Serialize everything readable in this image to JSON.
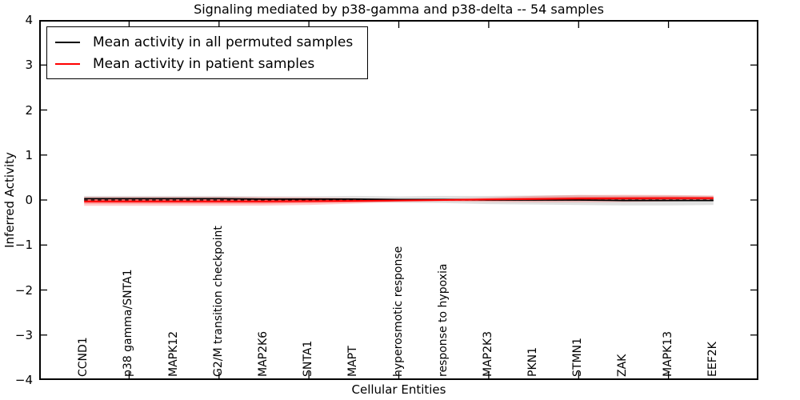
{
  "title": "Signaling mediated by p38-gamma and p38-delta -- 54 samples",
  "axes": {
    "xlabel": "Cellular Entities",
    "ylabel": "Inferred Activity"
  },
  "legend": {
    "items": [
      {
        "label": "Mean activity in all permuted samples",
        "color": "#000000"
      },
      {
        "label": "Mean activity in patient samples",
        "color": "#ff0000"
      }
    ]
  },
  "colors": {
    "frame": "#000000",
    "permuted_line": "#000000",
    "patient_line": "#ff0000",
    "patient_band": "#ff0000",
    "permuted_band": "#000000",
    "background": "#ffffff"
  },
  "chart_data": {
    "type": "line",
    "title": "Signaling mediated by p38-gamma and p38-delta -- 54 samples",
    "xlabel": "Cellular Entities",
    "ylabel": "Inferred Activity",
    "xlim": [
      0,
      16
    ],
    "ylim": [
      -4,
      4
    ],
    "grid": false,
    "legend_position": "upper left",
    "yticks": [
      4,
      3,
      2,
      1,
      0,
      -1,
      -2,
      -3,
      -4
    ],
    "ytick_labels": [
      "4",
      "3",
      "2",
      "1",
      "0",
      "−1",
      "−2",
      "−3",
      "−4"
    ],
    "frame_tick_x": [
      2,
      4,
      6,
      8,
      10,
      12,
      14
    ],
    "frame_tick_y": [
      -3,
      -2,
      -1,
      0,
      1,
      2,
      3
    ],
    "categories": [
      "CCND1",
      "p38 gamma/SNTA1",
      "MAPK12",
      "G2/M transition checkpoint",
      "MAP2K6",
      "SNTA1",
      "MAPT",
      "hyperosmotic response",
      "response to hypoxia",
      "MAP2K3",
      "PKN1",
      "STMN1",
      "ZAK",
      "MAPK13",
      "EEF2K"
    ],
    "x": [
      1,
      2,
      3,
      4,
      5,
      6,
      7,
      8,
      9,
      10,
      11,
      12,
      13,
      14,
      15
    ],
    "series": [
      {
        "name": "Mean activity in all permuted samples",
        "color": "#000000",
        "style": "solid",
        "values": [
          0.03,
          0.03,
          0.03,
          0.03,
          0.02,
          0.02,
          0.02,
          0.01,
          0.01,
          0.0,
          0.0,
          0.0,
          -0.01,
          -0.01,
          -0.01
        ],
        "band_std": [
          0.06,
          0.06,
          0.06,
          0.06,
          0.06,
          0.06,
          0.07,
          0.07,
          0.08,
          0.09,
          0.1,
          0.11,
          0.11,
          0.11,
          0.1
        ]
      },
      {
        "name": "Mean activity in patient samples",
        "color": "#ff0000",
        "style": "solid",
        "values": [
          -0.03,
          -0.03,
          -0.03,
          -0.03,
          -0.03,
          -0.025,
          -0.02,
          -0.01,
          0.0,
          0.01,
          0.02,
          0.03,
          0.035,
          0.04,
          0.04
        ],
        "band_std": [
          0.1,
          0.1,
          0.1,
          0.1,
          0.095,
          0.085,
          0.06,
          0.035,
          0.03,
          0.05,
          0.07,
          0.08,
          0.08,
          0.07,
          0.06
        ],
        "band_std_inner": [
          0.05,
          0.05,
          0.05,
          0.05,
          0.05,
          0.04,
          0.03,
          0.015,
          0.015,
          0.025,
          0.035,
          0.04,
          0.04,
          0.035,
          0.03
        ]
      }
    ],
    "zero_line": {
      "y": 0,
      "style": "dashed",
      "color": "#000000"
    }
  }
}
